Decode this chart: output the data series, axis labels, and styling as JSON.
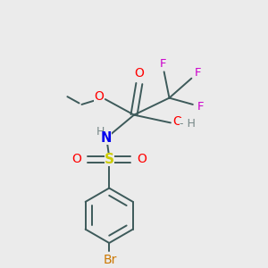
{
  "bg_color": "#ebebeb",
  "bond_color": "#3d5a5a",
  "colors": {
    "O": "#ff0000",
    "N": "#0000ee",
    "S": "#cccc00",
    "F": "#cc00cc",
    "Br": "#cc7700",
    "H": "#778888",
    "C": "#111111"
  },
  "figsize": [
    3.0,
    3.0
  ],
  "dpi": 100
}
